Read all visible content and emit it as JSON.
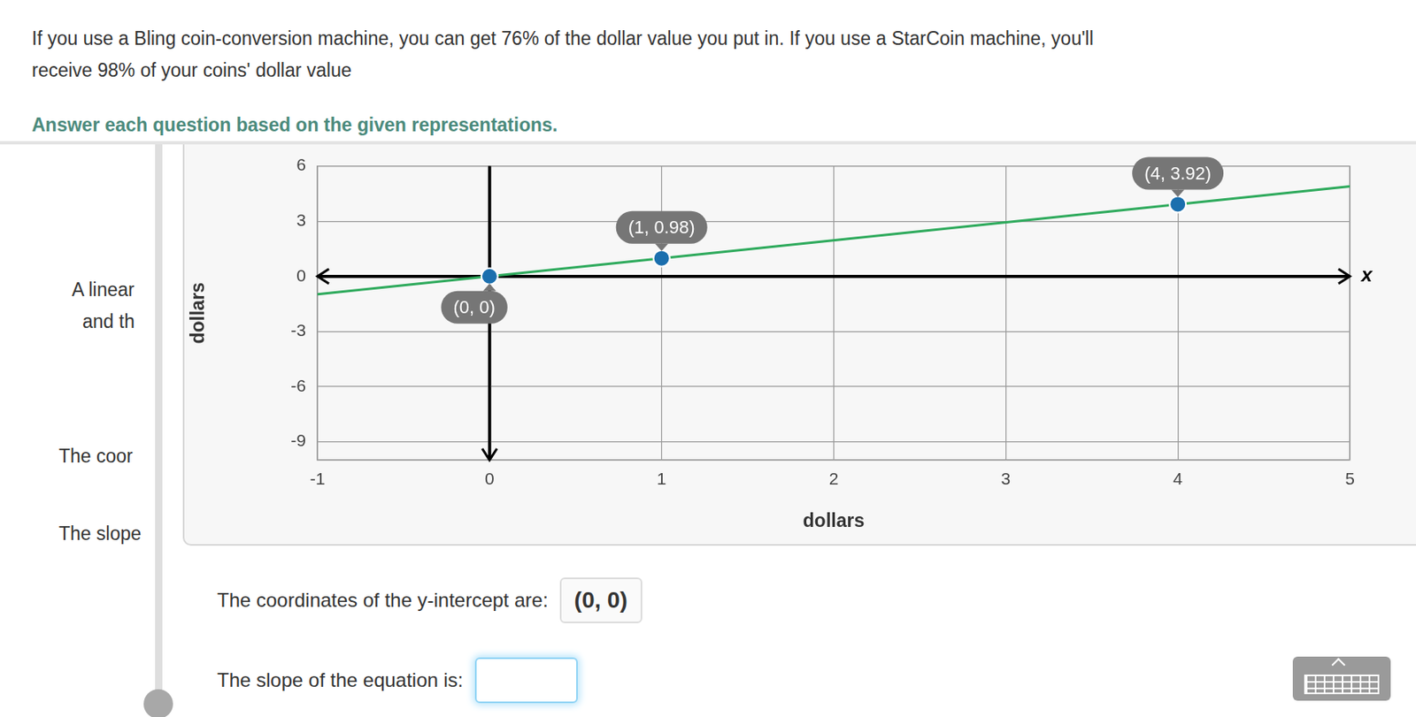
{
  "header": {
    "problem": [
      "If you use a Bling coin-conversion machine, you can get 76% of the dollar value you put in. If you use a StarCoin machine, you'll",
      "receive 98% of your coins' dollar value"
    ],
    "instruction": "Answer each question based on the given representations."
  },
  "hidden_text": [
    "A linear",
    "and th",
    "The coor",
    "The slope"
  ],
  "chart_data": {
    "type": "line",
    "x_label": "dollars",
    "y_label": "dollars",
    "x_name": "x",
    "xlim": [
      -1,
      5
    ],
    "xticks": [
      -1,
      0,
      1,
      2,
      3,
      4,
      5
    ],
    "ylim": [
      -10,
      6
    ],
    "yticks": [
      -9,
      -6,
      -3,
      0,
      3,
      6
    ],
    "grid": true,
    "series": [
      {
        "type": "line",
        "color": "#2eaa5c",
        "marker": "none",
        "line_style": "solid",
        "x": [
          -1,
          5
        ],
        "values": [
          -0.98,
          4.9
        ]
      },
      {
        "type": "scatter",
        "color": "#1b6fae",
        "marker": "circle",
        "data_labels": true,
        "x": [
          0,
          1,
          4
        ],
        "values": [
          0,
          0.98,
          3.92
        ],
        "value_labels": [
          "(0, 0)",
          "(1, 0.98)",
          "(4, 3.92)"
        ]
      }
    ]
  },
  "questions": [
    {
      "text": "The coordinates of the y-intercept are:",
      "answer": "(0, 0)"
    },
    {
      "text": "The slope of the equation is:",
      "answer": null
    }
  ]
}
